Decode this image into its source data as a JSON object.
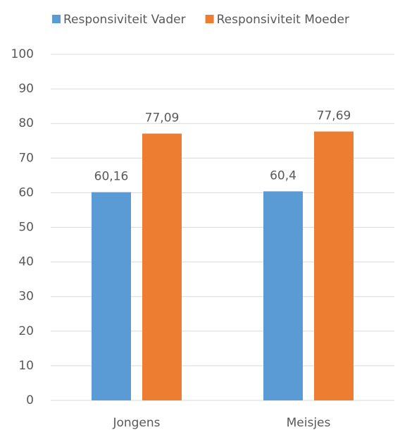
{
  "chart_data": {
    "type": "bar",
    "categories": [
      "Jongens",
      "Meisjes"
    ],
    "series": [
      {
        "name": "Responsiviteit Vader",
        "color": "#5b9bd5",
        "values": [
          60.16,
          60.4
        ],
        "value_labels": [
          "60,16",
          "60,4"
        ]
      },
      {
        "name": "Responsiviteit Moeder",
        "color": "#ed7d31",
        "values": [
          77.09,
          77.69
        ],
        "value_labels": [
          "77,09",
          "77,69"
        ]
      }
    ],
    "ylim": [
      0,
      100
    ],
    "yticks": [
      0,
      10,
      20,
      30,
      40,
      50,
      60,
      70,
      80,
      90,
      100
    ],
    "grid": true,
    "legend": "top"
  }
}
